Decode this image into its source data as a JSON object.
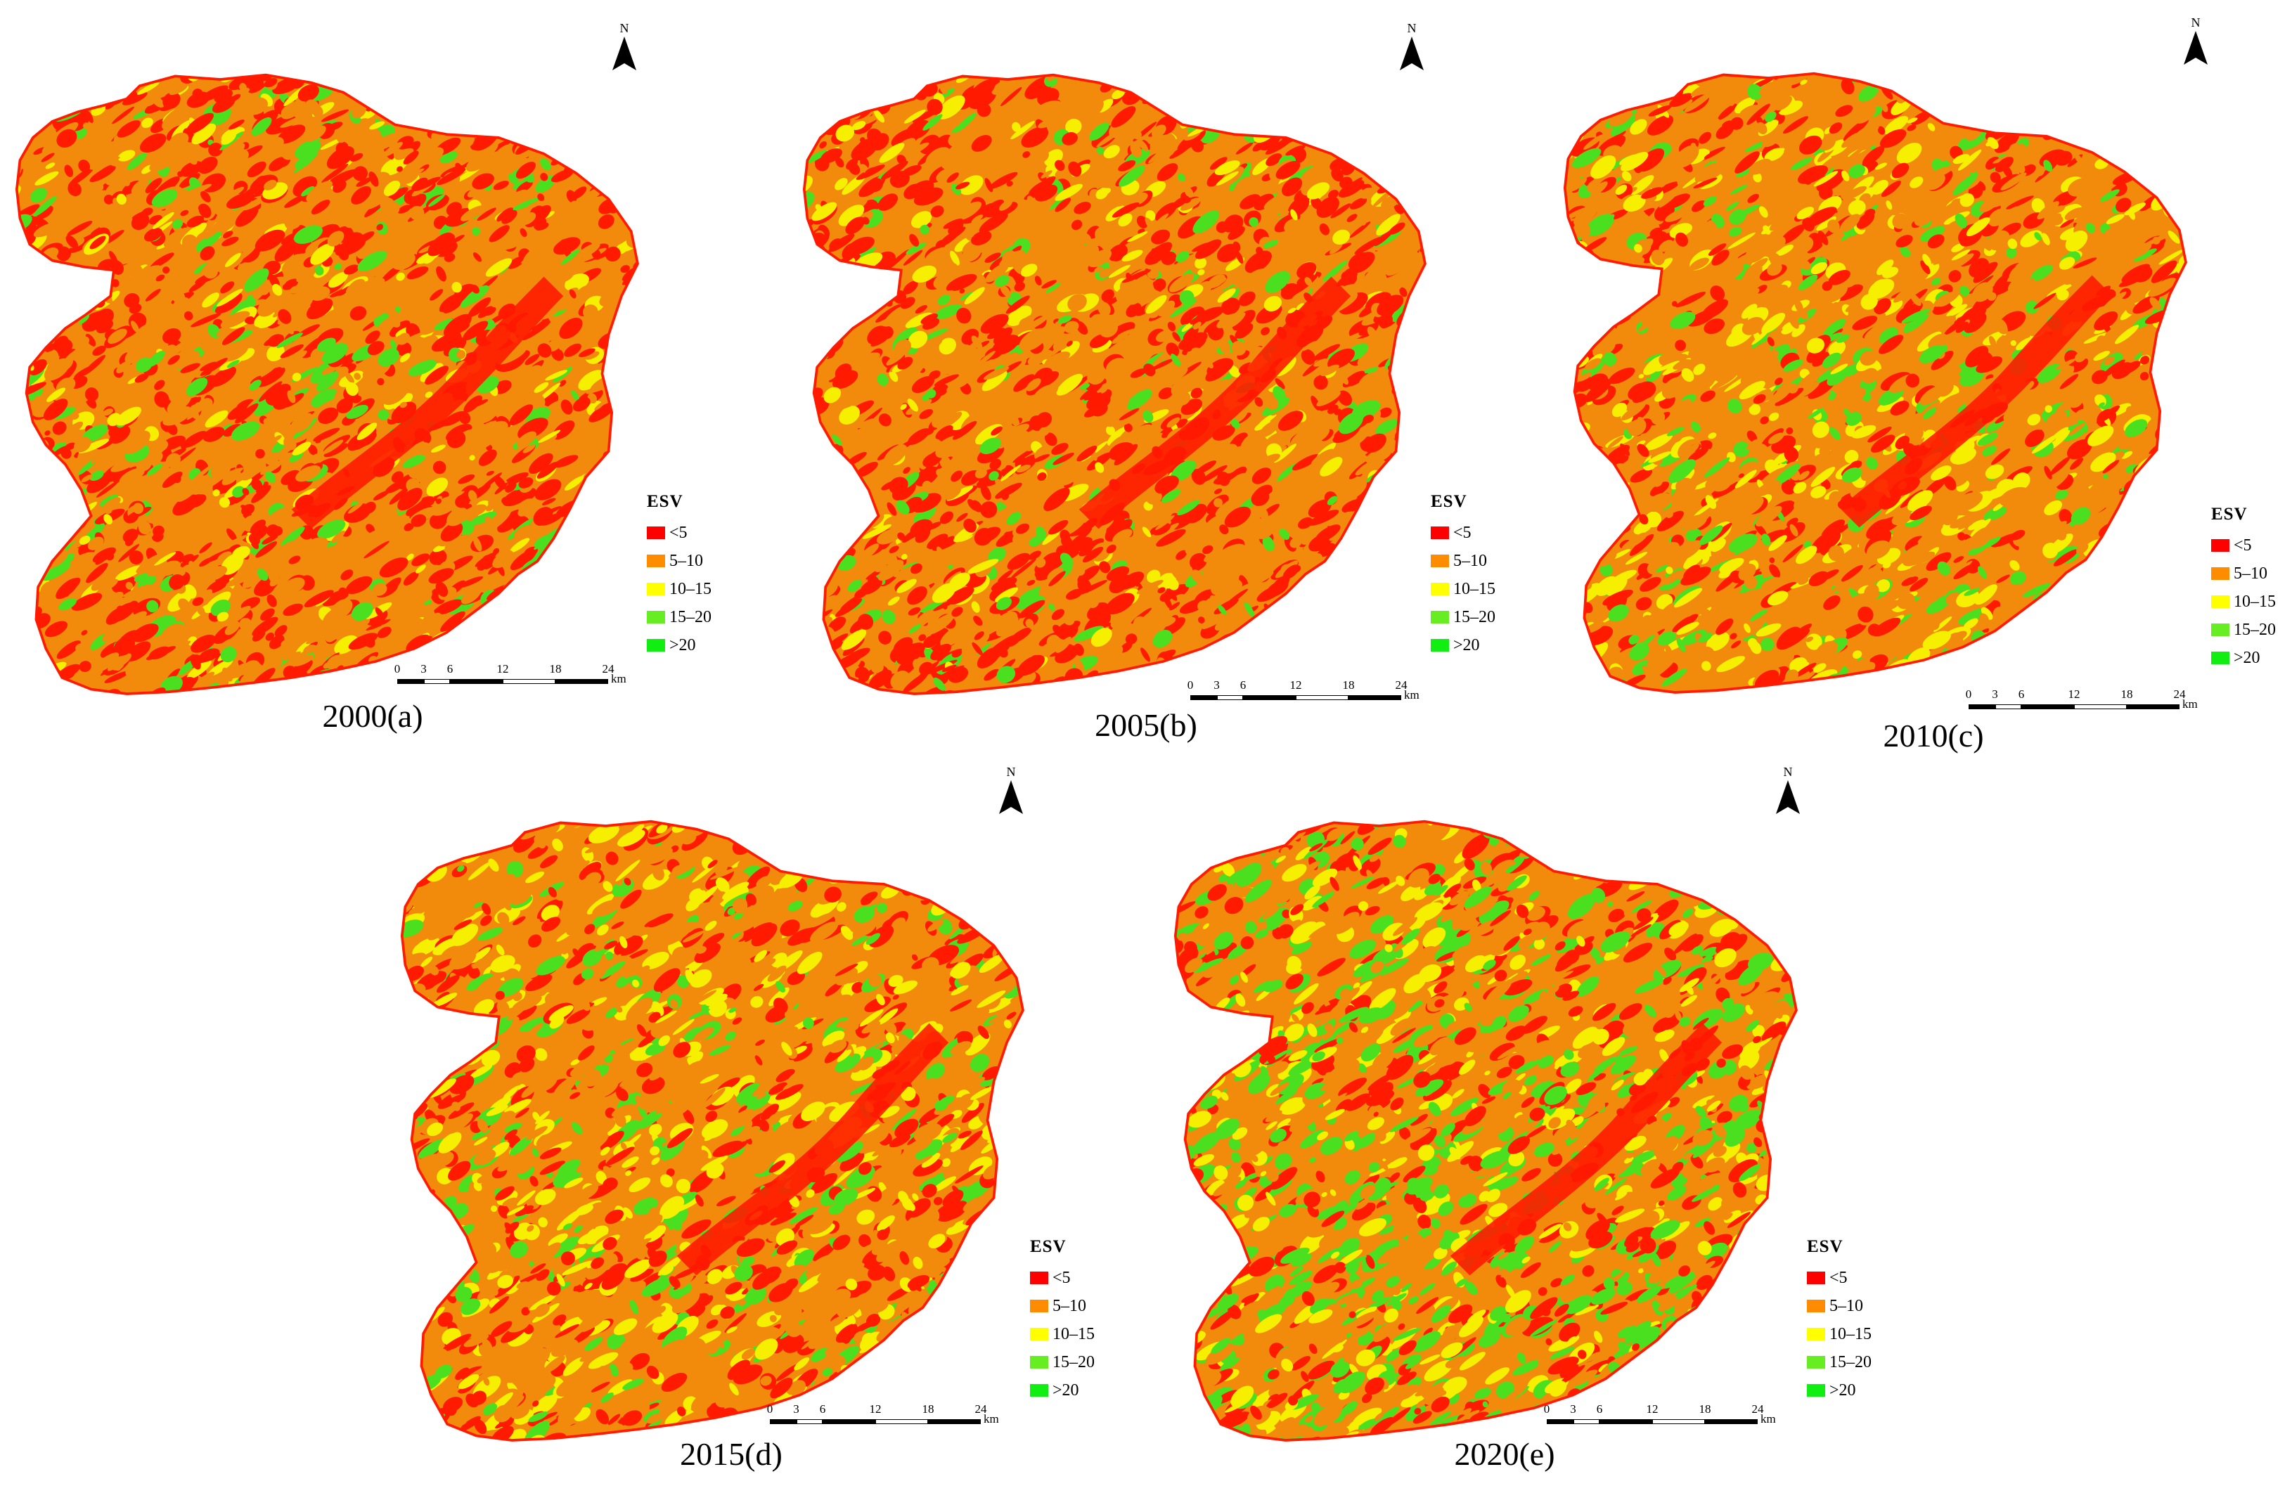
{
  "legend": {
    "title": "ESV",
    "classes": [
      {
        "label": "<5",
        "color": "#ff0000"
      },
      {
        "label": "5–10",
        "color": "#ff8c00"
      },
      {
        "label": "10–15",
        "color": "#ffff00"
      },
      {
        "label": "15–20",
        "color": "#66ee22"
      },
      {
        "label": ">20",
        "color": "#11ee11"
      }
    ]
  },
  "north_label": "N",
  "scale": {
    "ticks": [
      "0",
      "3",
      "6",
      "12",
      "18",
      "24"
    ],
    "unit": "km"
  },
  "panels": [
    {
      "id": "a",
      "caption": "2000(a)",
      "mix": {
        "red": 0.4,
        "orange": 0.42,
        "yellow": 0.09,
        "green": 0.09
      }
    },
    {
      "id": "b",
      "caption": "2005(b)",
      "mix": {
        "red": 0.42,
        "orange": 0.4,
        "yellow": 0.09,
        "green": 0.09
      }
    },
    {
      "id": "c",
      "caption": "2010(c)",
      "mix": {
        "red": 0.24,
        "orange": 0.46,
        "yellow": 0.18,
        "green": 0.12
      }
    },
    {
      "id": "d",
      "caption": "2015(d)",
      "mix": {
        "red": 0.24,
        "orange": 0.44,
        "yellow": 0.2,
        "green": 0.12
      }
    },
    {
      "id": "e",
      "caption": "2020(e)",
      "mix": {
        "red": 0.22,
        "orange": 0.34,
        "yellow": 0.18,
        "green": 0.26
      }
    }
  ]
}
